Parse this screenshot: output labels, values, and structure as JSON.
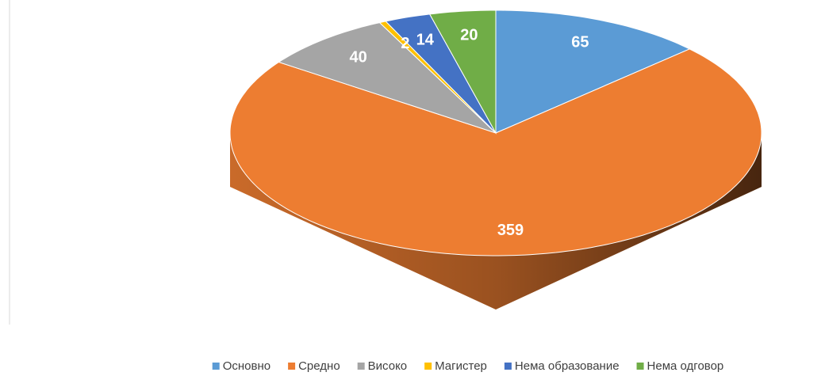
{
  "chart_data": {
    "type": "pie",
    "categories": [
      "Основно",
      "Средно",
      "Високо",
      "Магистер",
      "Нема образование",
      "Нема одговор"
    ],
    "values": [
      65,
      359,
      40,
      2,
      14,
      20
    ],
    "colors": [
      "#5b9bd5",
      "#ed7d31",
      "#a5a5a5",
      "#ffc000",
      "#4472c4",
      "#70ad47"
    ],
    "legend": "bottom"
  }
}
